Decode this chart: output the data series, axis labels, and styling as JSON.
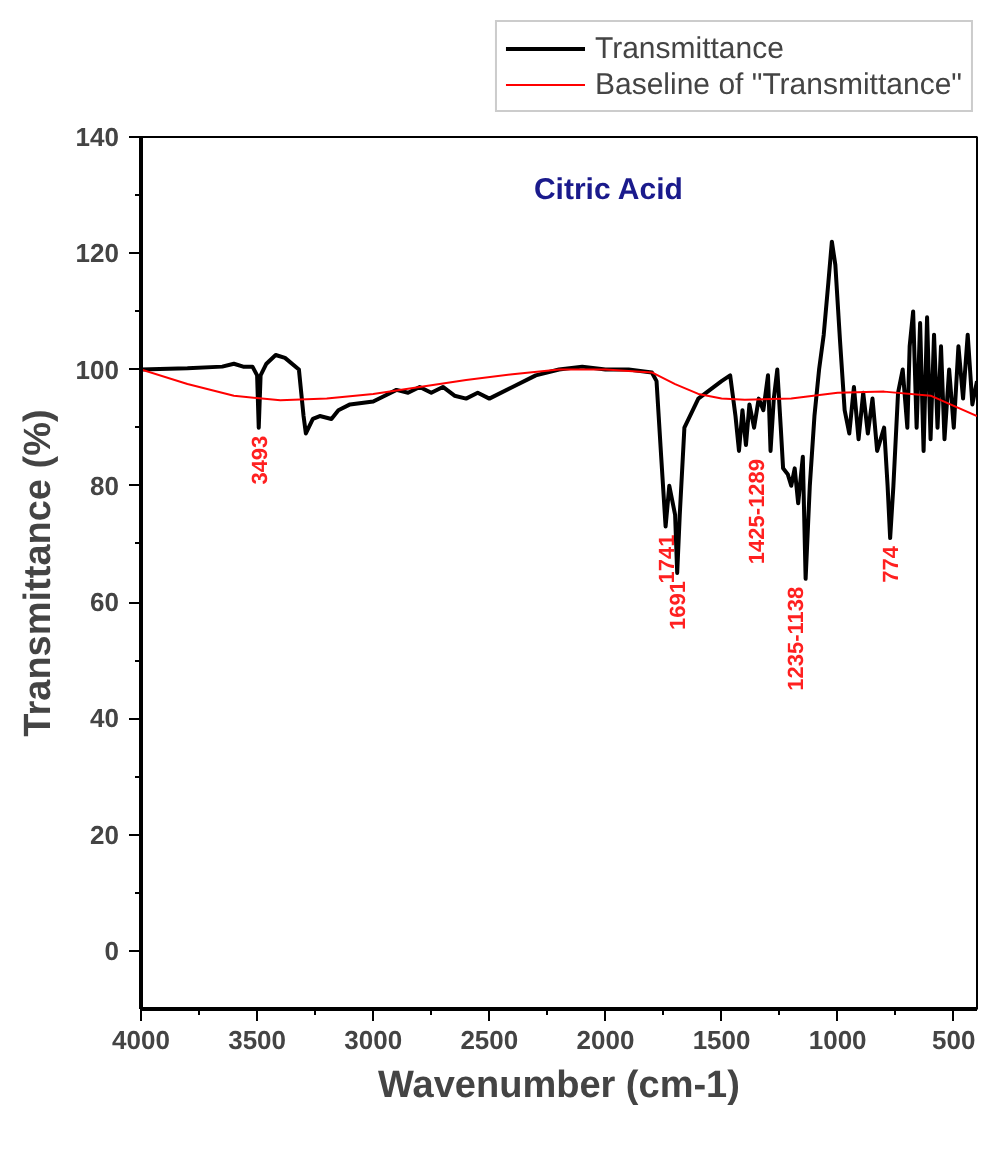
{
  "chart_data": {
    "type": "line",
    "title": "Citric Acid",
    "xlabel": "Wavenumber (cm-1)",
    "ylabel": "Transmittance (%)",
    "xlim": [
      4000,
      400
    ],
    "ylim": [
      -10,
      140
    ],
    "xticks": [
      4000,
      3500,
      3000,
      2500,
      2000,
      1500,
      1000,
      500
    ],
    "yticks": [
      0,
      20,
      40,
      60,
      80,
      100,
      120,
      140
    ],
    "grid": false,
    "legend": "top right",
    "marker": "none",
    "line_style": "solid",
    "series": [
      {
        "name": "Transmittance",
        "color": "#000000",
        "x": [
          4000,
          3800,
          3650,
          3600,
          3560,
          3520,
          3500,
          3493,
          3485,
          3460,
          3420,
          3380,
          3320,
          3300,
          3290,
          3260,
          3230,
          3180,
          3150,
          3100,
          3000,
          2950,
          2900,
          2850,
          2800,
          2750,
          2700,
          2650,
          2600,
          2550,
          2500,
          2400,
          2300,
          2200,
          2100,
          2000,
          1900,
          1800,
          1780,
          1760,
          1741,
          1725,
          1700,
          1691,
          1680,
          1660,
          1600,
          1500,
          1463,
          1440,
          1425,
          1410,
          1395,
          1380,
          1360,
          1340,
          1320,
          1300,
          1289,
          1275,
          1260,
          1245,
          1235,
          1215,
          1200,
          1185,
          1170,
          1150,
          1138,
          1120,
          1100,
          1080,
          1060,
          1040,
          1025,
          1010,
          990,
          970,
          950,
          930,
          910,
          890,
          870,
          850,
          830,
          800,
          785,
          774,
          760,
          740,
          720,
          700,
          690,
          675,
          660,
          645,
          630,
          615,
          600,
          585,
          570,
          555,
          540,
          520,
          500,
          480,
          460,
          440,
          420,
          400
        ],
        "values": [
          100,
          100.2,
          100.5,
          101,
          100.5,
          100.5,
          99,
          90,
          99,
          101,
          102.5,
          102,
          100,
          92,
          89,
          91.5,
          92,
          91.5,
          93,
          94,
          94.5,
          95.5,
          96.5,
          96,
          97,
          96,
          97,
          95.5,
          95,
          96,
          95,
          97,
          99,
          100,
          100.5,
          100,
          100,
          99.5,
          98,
          85,
          73,
          80,
          75,
          65,
          75,
          90,
          95,
          98,
          99,
          92,
          86,
          93,
          87,
          94,
          90,
          95,
          93,
          99,
          86,
          95,
          100,
          90,
          83,
          82,
          80,
          83,
          77,
          85,
          64,
          80,
          92,
          100,
          106,
          115,
          122,
          118,
          105,
          93,
          89,
          97,
          88,
          96,
          89,
          95,
          86,
          90,
          80,
          71,
          80,
          96,
          100,
          90,
          104,
          110,
          90,
          108,
          86,
          109,
          88,
          106,
          90,
          104,
          88,
          100,
          90,
          104,
          95,
          106,
          94,
          98
        ]
      },
      {
        "name": "Baseline of \"Transmittance\"",
        "color": "#ff0000",
        "x": [
          4000,
          3800,
          3600,
          3400,
          3200,
          3000,
          2800,
          2600,
          2400,
          2200,
          2000,
          1800,
          1700,
          1600,
          1500,
          1400,
          1200,
          1000,
          800,
          600,
          400
        ],
        "values": [
          100,
          97.5,
          95.5,
          94.7,
          95,
          95.8,
          97,
          98.2,
          99.2,
          100,
          100,
          99.5,
          97.5,
          95.8,
          95,
          94.8,
          95,
          96,
          96.2,
          95.5,
          92
        ]
      }
    ],
    "annotations": [
      {
        "text": "3493",
        "x": 3493,
        "y": 90
      },
      {
        "text": "1741",
        "x": 1741,
        "y": 73
      },
      {
        "text": "1691",
        "x": 1691,
        "y": 65
      },
      {
        "text": "1425-1289",
        "x": 1350,
        "y": 86
      },
      {
        "text": "1235-1138",
        "x": 1185,
        "y": 64
      },
      {
        "text": "774",
        "x": 774,
        "y": 71
      }
    ]
  }
}
